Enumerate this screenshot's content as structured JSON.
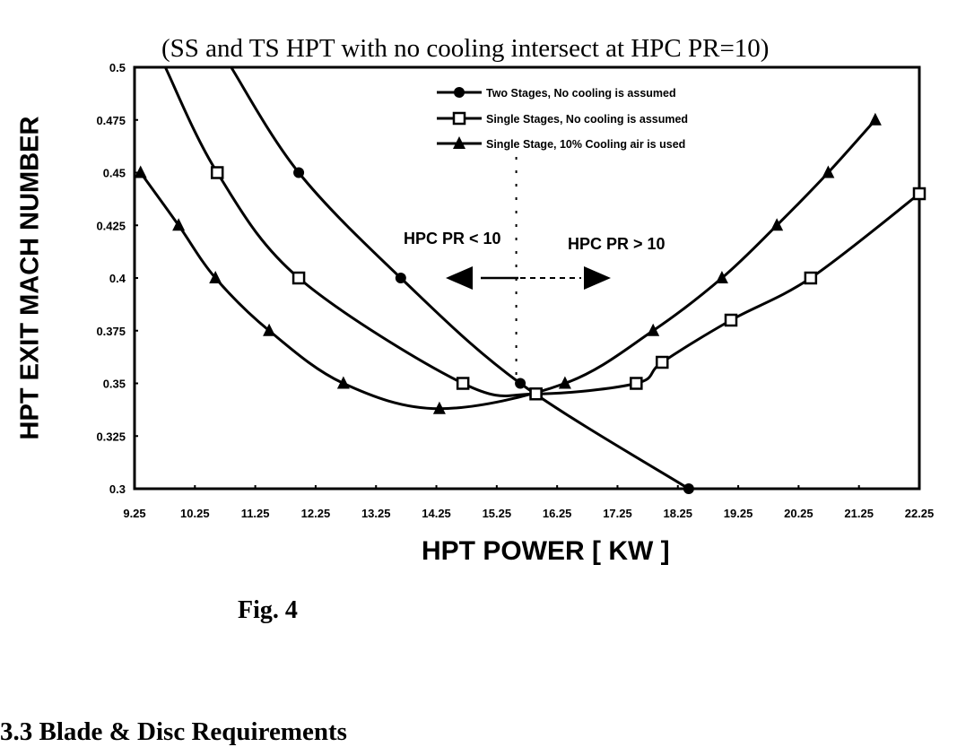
{
  "document": {
    "figure_caption": "Fig.  4",
    "section_heading": "3.3 Blade & Disc Requirements"
  },
  "chart_data": {
    "type": "line",
    "title": "(SS and TS HPT with no cooling intersect at HPC PR=10)",
    "xlabel": "HPT POWER [ KW ]",
    "ylabel": "HPT EXIT MACH NUMBER",
    "xlim": [
      9.25,
      22.25
    ],
    "ylim": [
      0.3,
      0.5
    ],
    "x_ticks": [
      "9.25",
      "10.25",
      "11.25",
      "12.25",
      "13.25",
      "14.25",
      "15.25",
      "16.25",
      "17.25",
      "18.25",
      "19.25",
      "20.25",
      "21.25",
      "22.25"
    ],
    "y_ticks": [
      "0.5",
      "0.475",
      "0.45",
      "0.425",
      "0.4",
      "0.375",
      "0.35",
      "0.325",
      "0.3"
    ],
    "grid": false,
    "legend_position": "upper right",
    "series": [
      {
        "name": "Two Stages, No cooling is assumed",
        "marker": "filled-circle",
        "x": [
          10.85,
          11.97,
          13.66,
          15.64,
          18.43
        ],
        "y": [
          0.5,
          0.45,
          0.4,
          0.35,
          0.3
        ]
      },
      {
        "name": "Single Stages, No cooling is assumed",
        "marker": "open-square",
        "x": [
          9.76,
          10.62,
          11.97,
          14.69,
          15.9,
          17.56,
          17.99,
          19.13,
          20.45,
          22.25
        ],
        "y": [
          0.5,
          0.45,
          0.4,
          0.35,
          0.345,
          0.35,
          0.36,
          0.38,
          0.4,
          0.44
        ]
      },
      {
        "name": "Single Stage, 10% Cooling air is used",
        "marker": "filled-triangle",
        "x": [
          9.35,
          9.98,
          10.59,
          11.48,
          12.71,
          14.3,
          16.38,
          17.84,
          18.98,
          19.89,
          20.74,
          21.52
        ],
        "y": [
          0.45,
          0.425,
          0.4,
          0.375,
          0.35,
          0.338,
          0.35,
          0.375,
          0.4,
          0.425,
          0.45,
          0.475
        ]
      }
    ],
    "annotations": [
      {
        "text": "HPC PR < 10",
        "arrow": "left",
        "x": 14.4,
        "y": 0.41
      },
      {
        "text": "HPC PR > 10",
        "arrow": "right",
        "x": 16.7,
        "y": 0.41
      },
      {
        "text": "divider",
        "type": "vertical-dotted-line",
        "x": 15.9
      }
    ]
  }
}
